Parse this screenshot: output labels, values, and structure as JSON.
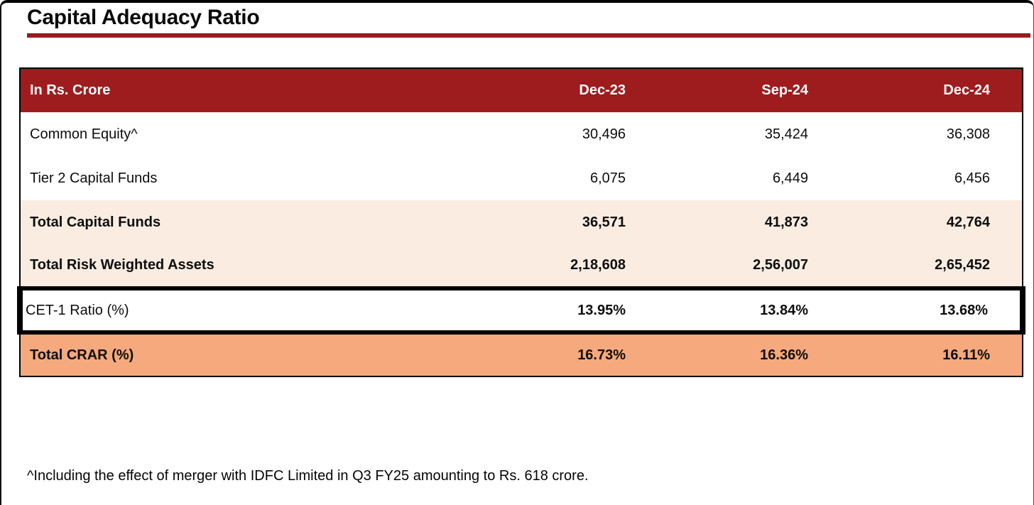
{
  "page": {
    "title": "Capital Adequacy Ratio",
    "footnote": "^Including the effect of merger with IDFC Limited in Q3 FY25 amounting to Rs. 618 crore."
  },
  "colors": {
    "brand_red": "#9E1C1E",
    "row_peach": "#FAECE1",
    "row_orange": "#F5A97C",
    "highlight_box": "#000000"
  },
  "chart_data": {
    "type": "table",
    "title": "Capital Adequacy Ratio",
    "unit_label": "In Rs. Crore",
    "columns": [
      "Dec-23",
      "Sep-24",
      "Dec-24"
    ],
    "rows": [
      {
        "label": "Common Equity^",
        "values": [
          "30,496",
          "35,424",
          "36,308"
        ],
        "style": "plain"
      },
      {
        "label": "Tier 2 Capital Funds",
        "values": [
          "6,075",
          "6,449",
          "6,456"
        ],
        "style": "plain"
      },
      {
        "label": "Total Capital Funds",
        "values": [
          "36,571",
          "41,873",
          "42,764"
        ],
        "style": "subtotal"
      },
      {
        "label": "Total Risk Weighted Assets",
        "values": [
          "2,18,608",
          "2,56,007",
          "2,65,452"
        ],
        "style": "subtotal"
      },
      {
        "label": "CET-1 Ratio (%)",
        "values": [
          "13.95%",
          "13.84%",
          "13.68%"
        ],
        "style": "highlight"
      },
      {
        "label": "Total CRAR (%)",
        "values": [
          "16.73%",
          "16.36%",
          "16.11%"
        ],
        "style": "total"
      }
    ],
    "layout": {
      "grid": false,
      "value_alignment": "right",
      "number_format": "indian-grouping"
    }
  }
}
